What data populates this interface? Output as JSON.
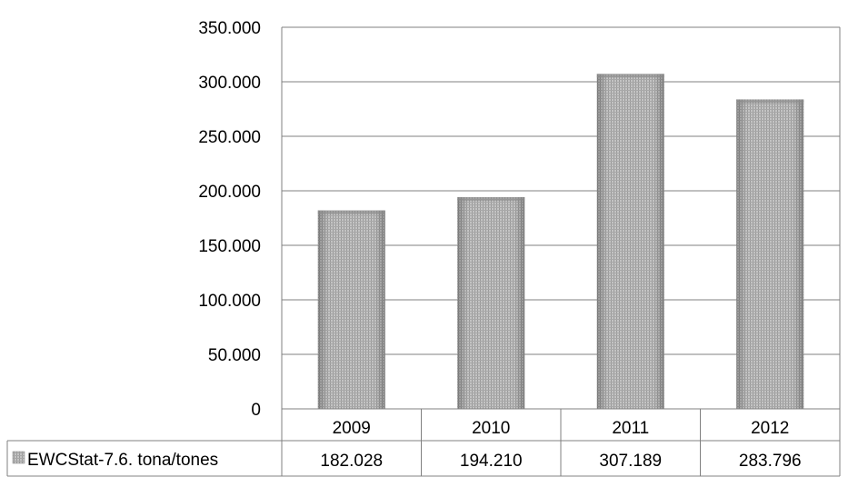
{
  "chart_data": {
    "type": "bar",
    "categories": [
      "2009",
      "2010",
      "2011",
      "2012"
    ],
    "series": [
      {
        "name": "EWCStat-7.6. tona/tones",
        "values": [
          182028,
          194210,
          307189,
          283796
        ],
        "value_labels": [
          "182.028",
          "194.210",
          "307.189",
          "283.796"
        ]
      }
    ],
    "ylim": [
      0,
      350000
    ],
    "yticks": [
      {
        "value": 0,
        "label": "0"
      },
      {
        "value": 50000,
        "label": "50.000"
      },
      {
        "value": 100000,
        "label": "100.000"
      },
      {
        "value": 150000,
        "label": "150.000"
      },
      {
        "value": 200000,
        "label": "200.000"
      },
      {
        "value": 250000,
        "label": "250.000"
      },
      {
        "value": 300000,
        "label": "300.000"
      },
      {
        "value": 350000,
        "label": "350.000"
      }
    ],
    "grid": true,
    "data_table": true,
    "colors": {
      "bar": "#b8b8b8",
      "bar_dark": "#8c8c8c",
      "grid": "#808080"
    }
  }
}
